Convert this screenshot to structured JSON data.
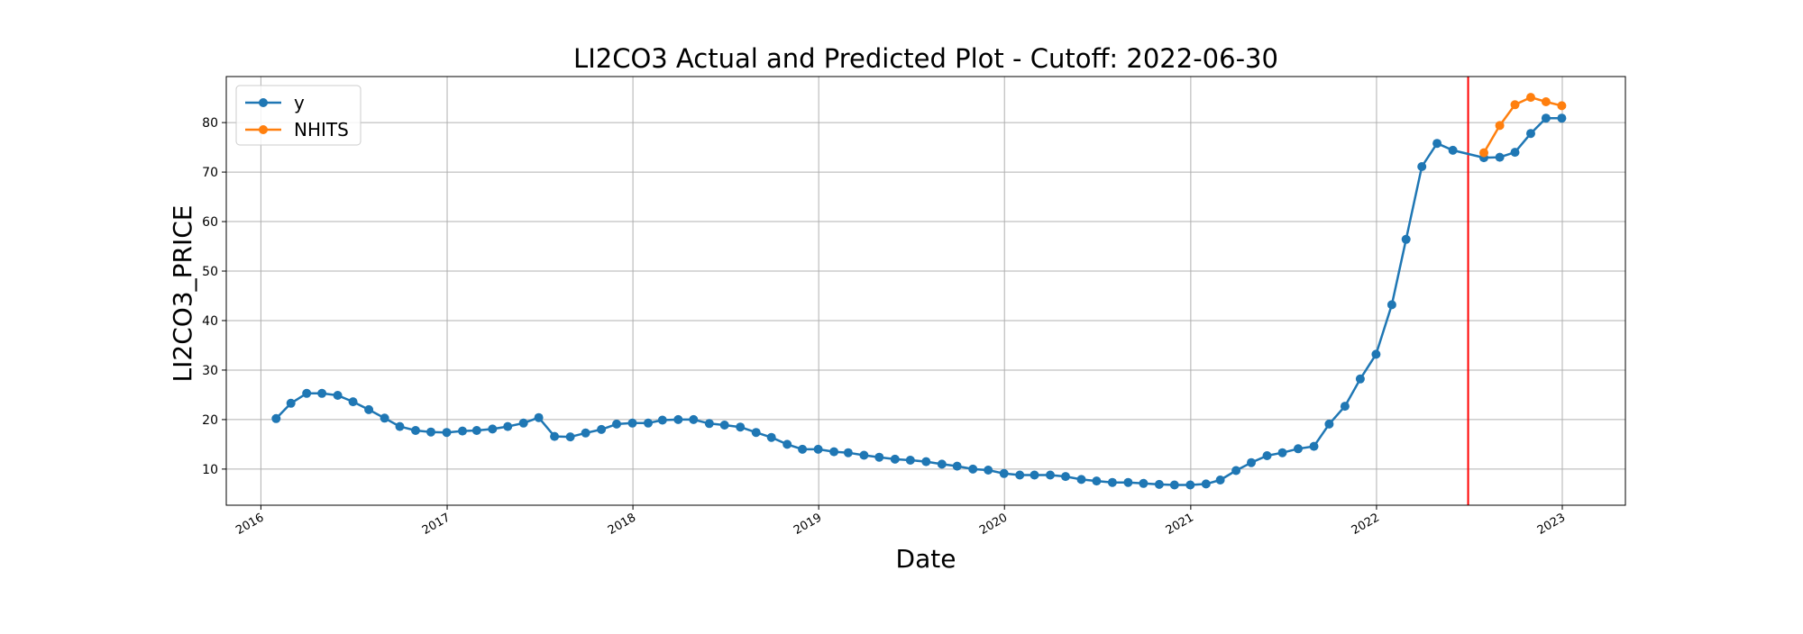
{
  "chart_data": {
    "type": "line",
    "title": "LI2CO3 Actual and Predicted Plot - Cutoff: 2022-06-30",
    "xlabel": "Date",
    "ylabel": "LI2CO3_PRICE",
    "xlim": [
      "2015-10-25",
      "2023-05-05"
    ],
    "ylim": [
      2.7,
      89.3
    ],
    "x_ticks": [
      "2016",
      "2017",
      "2018",
      "2019",
      "2020",
      "2021",
      "2022",
      "2023"
    ],
    "y_ticks": [
      10,
      20,
      30,
      40,
      50,
      60,
      70,
      80
    ],
    "grid": true,
    "legend": "top-left",
    "cutoff": "2022-06-30",
    "colors": {
      "y": "#1f77b4",
      "NHITS": "#ff7f0e",
      "cutoff": "#ff0000",
      "grid": "#b0b0b0"
    },
    "series": [
      {
        "name": "y",
        "x": [
          "2016-01-31",
          "2016-02-29",
          "2016-03-31",
          "2016-04-30",
          "2016-05-31",
          "2016-06-30",
          "2016-07-31",
          "2016-08-31",
          "2016-09-30",
          "2016-10-31",
          "2016-11-30",
          "2016-12-31",
          "2017-01-31",
          "2017-02-28",
          "2017-03-31",
          "2017-04-30",
          "2017-05-31",
          "2017-06-30",
          "2017-07-31",
          "2017-08-31",
          "2017-09-30",
          "2017-10-31",
          "2017-11-30",
          "2017-12-31",
          "2018-01-31",
          "2018-02-28",
          "2018-03-31",
          "2018-04-30",
          "2018-05-31",
          "2018-06-30",
          "2018-07-31",
          "2018-08-31",
          "2018-09-30",
          "2018-10-31",
          "2018-11-30",
          "2018-12-31",
          "2019-01-31",
          "2019-02-28",
          "2019-03-31",
          "2019-04-30",
          "2019-05-31",
          "2019-06-30",
          "2019-07-31",
          "2019-08-31",
          "2019-09-30",
          "2019-10-31",
          "2019-11-30",
          "2019-12-31",
          "2020-01-31",
          "2020-02-29",
          "2020-03-31",
          "2020-04-30",
          "2020-05-31",
          "2020-06-30",
          "2020-07-31",
          "2020-08-31",
          "2020-09-30",
          "2020-10-31",
          "2020-11-30",
          "2020-12-31",
          "2021-01-31",
          "2021-02-28",
          "2021-03-31",
          "2021-04-30",
          "2021-05-31",
          "2021-06-30",
          "2021-07-31",
          "2021-08-31",
          "2021-09-30",
          "2021-10-31",
          "2021-11-30",
          "2021-12-31",
          "2022-01-31",
          "2022-02-28",
          "2022-03-31",
          "2022-04-30",
          "2022-05-31",
          "2022-07-31",
          "2022-08-31",
          "2022-09-30",
          "2022-10-31",
          "2022-11-30",
          "2022-12-31"
        ],
        "values": [
          20.2,
          23.3,
          25.3,
          25.3,
          24.9,
          23.6,
          22.0,
          20.3,
          18.6,
          17.8,
          17.5,
          17.4,
          17.7,
          17.8,
          18.1,
          18.6,
          19.3,
          20.4,
          16.6,
          16.5,
          17.3,
          18.0,
          19.1,
          19.3,
          19.3,
          19.9,
          20.0,
          20.0,
          19.2,
          18.9,
          18.5,
          17.4,
          16.4,
          15.0,
          14.0,
          14.0,
          13.5,
          13.3,
          12.8,
          12.4,
          12.0,
          11.8,
          11.5,
          11.0,
          10.6,
          10.0,
          9.8,
          9.1,
          8.8,
          8.8,
          8.8,
          8.5,
          7.9,
          7.6,
          7.3,
          7.3,
          7.1,
          6.9,
          6.8,
          6.8,
          7.0,
          7.8,
          9.7,
          11.3,
          12.7,
          13.3,
          14.1,
          14.6,
          19.1,
          22.7,
          28.2,
          33.2,
          43.2,
          56.4,
          71.1,
          75.8,
          74.4,
          72.9,
          73.0,
          74.0,
          77.8,
          80.9,
          80.9
        ]
      },
      {
        "name": "NHITS",
        "x": [
          "2022-07-31",
          "2022-08-31",
          "2022-09-30",
          "2022-10-31",
          "2022-11-30",
          "2022-12-31"
        ],
        "values": [
          73.9,
          79.4,
          83.6,
          85.1,
          84.2,
          83.4
        ]
      }
    ]
  }
}
